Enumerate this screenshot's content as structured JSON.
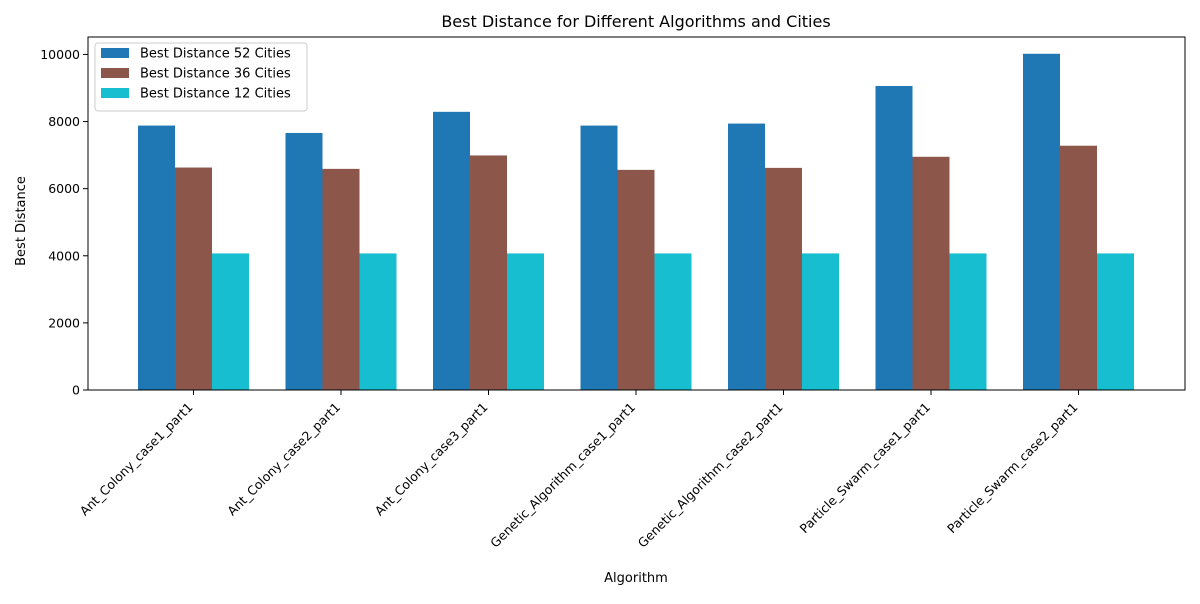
{
  "chart_data": {
    "type": "bar",
    "title": "Best Distance for Different Algorithms and Cities",
    "xlabel": "Algorithm",
    "ylabel": "Best Distance",
    "categories": [
      "Ant_Colony_case1_part1",
      "Ant_Colony_case2_part1",
      "Ant_Colony_case3_part1",
      "Genetic_Algorithm_case1_part1",
      "Genetic_Algorithm_case2_part1",
      "Particle_Swarm_case1_part1",
      "Particle_Swarm_case2_part1"
    ],
    "series": [
      {
        "name": "Best Distance 52 Cities",
        "color": "#1f77b4",
        "values": [
          7880,
          7660,
          8290,
          7880,
          7940,
          9060,
          10020
        ]
      },
      {
        "name": "Best Distance 36 Cities",
        "color": "#8c564b",
        "values": [
          6630,
          6590,
          6990,
          6560,
          6620,
          6950,
          7280
        ]
      },
      {
        "name": "Best Distance 12 Cities",
        "color": "#17becf",
        "values": [
          4070,
          4070,
          4070,
          4070,
          4070,
          4070,
          4070
        ]
      }
    ],
    "ylim": [
      0,
      10520
    ],
    "yticks": [
      0,
      2000,
      4000,
      6000,
      8000,
      10000
    ],
    "grid": false,
    "legend_position": "top-left",
    "xtick_rotation": 45
  }
}
